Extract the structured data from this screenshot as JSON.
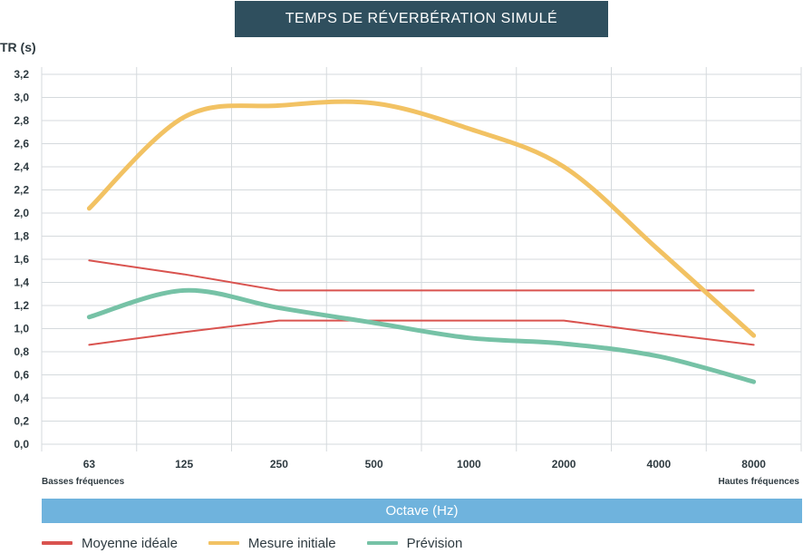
{
  "chart_data": {
    "type": "line",
    "title": "TEMPS DE RÉVERBÉRATION SIMULÉ",
    "ylabel": "TR (s)",
    "xlabel": "Octave (Hz)",
    "categories": [
      "63",
      "125",
      "250",
      "500",
      "1000",
      "2000",
      "4000",
      "8000"
    ],
    "x_sublabels": {
      "left": "Basses fréquences",
      "right": "Hautes fréquences"
    },
    "yticks": [
      "0,0",
      "0,2",
      "0,4",
      "0,6",
      "0,8",
      "1,0",
      "1,2",
      "1,4",
      "1,6",
      "1,8",
      "2,0",
      "2,2",
      "2,4",
      "2,6",
      "2,8",
      "3,0",
      "3,2"
    ],
    "ylim": [
      0,
      3.2
    ],
    "grid": true,
    "series": [
      {
        "name": "Moyenne idéale (max)",
        "color": "#d9534f",
        "smooth": false,
        "width": 2,
        "values": [
          1.59,
          1.47,
          1.33,
          1.33,
          1.33,
          1.33,
          1.33,
          1.33
        ]
      },
      {
        "name": "Moyenne idéale (min)",
        "color": "#d9534f",
        "smooth": false,
        "width": 2,
        "values": [
          0.86,
          0.97,
          1.07,
          1.07,
          1.07,
          1.07,
          0.96,
          0.86
        ]
      },
      {
        "name": "Mesure initiale",
        "color": "#f2c263",
        "smooth": true,
        "width": 5,
        "values": [
          2.04,
          2.83,
          2.93,
          2.95,
          2.73,
          2.4,
          1.68,
          0.94
        ]
      },
      {
        "name": "Prévision",
        "color": "#76c2a6",
        "smooth": true,
        "width": 5,
        "values": [
          1.1,
          1.33,
          1.18,
          1.05,
          0.92,
          0.87,
          0.76,
          0.54
        ]
      }
    ]
  },
  "legend": [
    {
      "label": "Moyenne idéale",
      "color": "#d9534f"
    },
    {
      "label": "Mesure initiale",
      "color": "#f2c263"
    },
    {
      "label": "Prévision",
      "color": "#76c2a6"
    }
  ]
}
